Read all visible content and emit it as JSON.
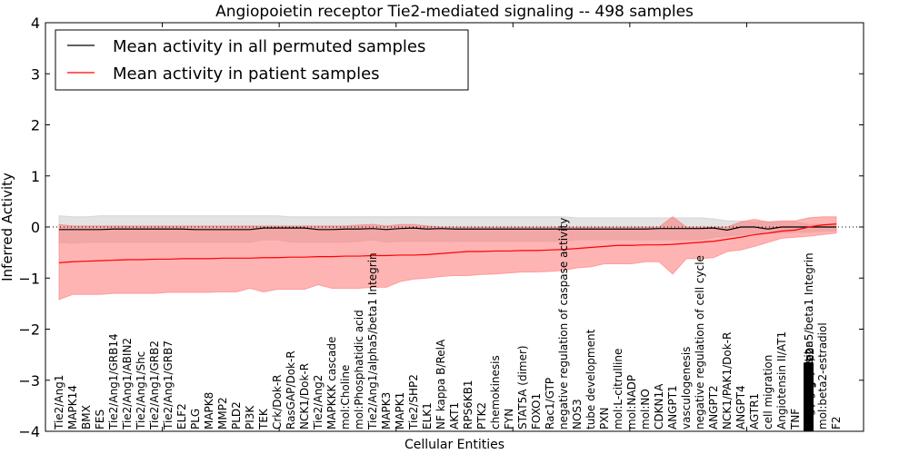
{
  "chart_data": {
    "type": "line",
    "title": "Angiopoietin receptor Tie2-mediated signaling -- 498 samples",
    "xlabel": "Cellular Entities",
    "ylabel": "Inferred Activity",
    "ylim": [
      -4,
      4
    ],
    "yticks": [
      -4,
      -3,
      -2,
      -1,
      0,
      1,
      2,
      3,
      4
    ],
    "ytick_labels": [
      "−4",
      "−3",
      "−2",
      "−1",
      "0",
      "1",
      "2",
      "3",
      "4"
    ],
    "xlim": [
      0,
      60
    ],
    "grid": false,
    "legend_position": "top-left",
    "reference_line": 0,
    "categories": [
      "Tie2/Ang1",
      "MAPK14",
      "BMX",
      "FES",
      "Tie2/Ang1/GRB14",
      "Tie2/Ang1/ABIN2",
      "Tie2/Ang1/Shc",
      "Tie2/Ang1/GRB2",
      "Tie2/Ang1/GRB7",
      "ELF2",
      "PLG",
      "MAPK8",
      "MMP2",
      "PLD2",
      "PI3K",
      "TEK",
      "Crk/Dok-R",
      "RasGAP/Dok-R",
      "NCK1/Dok-R",
      "Tie2/Ang2",
      "MAPKKK cascade",
      "mol:Choline",
      "mol:Phosphatidic acid",
      "Tie2/Ang1/alpha5/beta1 Integrin",
      "MAPK3",
      "MAPK1",
      "Tie2/SHP2",
      "ELK1",
      "NF kappa B/RelA",
      "AKT1",
      "RPS6KB1",
      "PTK2",
      "chemokinesis",
      "FYN",
      "STAT5A (dimer)",
      "FOXO1",
      "Rac1/GTP",
      "negative regulation of caspase activity",
      "NOS3",
      "tube development",
      "PXN",
      "mol:L-citrulline",
      "mol:NADP",
      "mol:NO",
      "CDKN1A",
      "ANGPT1",
      "vasculogenesis",
      "negative regulation of cell cycle",
      "ANGPT2",
      "NCK1/PAK1/Dok-R",
      "ANGPT4",
      "AGTR1",
      "cell migration",
      "Angiotensin II/AT1",
      "TNF",
      "(overlapping labels)",
      "mol:beta2-estradiol",
      "F2"
    ],
    "series": [
      {
        "name": "Mean activity in all permuted samples",
        "color": "#000000",
        "values": [
          -0.05,
          -0.05,
          -0.05,
          -0.05,
          -0.04,
          -0.04,
          -0.04,
          -0.04,
          -0.04,
          -0.04,
          -0.05,
          -0.05,
          -0.05,
          -0.05,
          -0.05,
          -0.02,
          -0.02,
          -0.02,
          -0.02,
          -0.05,
          -0.05,
          -0.04,
          -0.04,
          -0.03,
          -0.05,
          -0.03,
          -0.02,
          -0.04,
          -0.03,
          -0.04,
          -0.04,
          -0.04,
          -0.04,
          -0.04,
          -0.04,
          -0.04,
          -0.04,
          -0.04,
          -0.04,
          -0.04,
          -0.04,
          -0.04,
          -0.04,
          -0.04,
          -0.03,
          -0.03,
          -0.03,
          -0.03,
          -0.02,
          -0.06,
          0.0,
          0.0,
          -0.04,
          0.0,
          0.0,
          0.0,
          0.0,
          0.0
        ],
        "band_upper": [
          0.22,
          0.2,
          0.2,
          0.22,
          0.22,
          0.22,
          0.22,
          0.22,
          0.22,
          0.22,
          0.22,
          0.22,
          0.22,
          0.22,
          0.22,
          0.22,
          0.22,
          0.2,
          0.2,
          0.2,
          0.2,
          0.2,
          0.2,
          0.2,
          0.2,
          0.2,
          0.2,
          0.2,
          0.2,
          0.2,
          0.2,
          0.2,
          0.2,
          0.2,
          0.2,
          0.2,
          0.2,
          0.2,
          0.18,
          0.18,
          0.18,
          0.18,
          0.18,
          0.18,
          0.18,
          0.18,
          0.18,
          0.18,
          0.16,
          0.12,
          0.12,
          0.1,
          0.1,
          0.1,
          0.1,
          0.05,
          0.05,
          0.05
        ],
        "band_lower": [
          -0.3,
          -0.32,
          -0.3,
          -0.3,
          -0.3,
          -0.3,
          -0.3,
          -0.3,
          -0.3,
          -0.3,
          -0.3,
          -0.3,
          -0.3,
          -0.3,
          -0.3,
          -0.25,
          -0.25,
          -0.3,
          -0.3,
          -0.3,
          -0.3,
          -0.3,
          -0.28,
          -0.25,
          -0.3,
          -0.28,
          -0.28,
          -0.28,
          -0.28,
          -0.28,
          -0.28,
          -0.28,
          -0.28,
          -0.28,
          -0.28,
          -0.28,
          -0.28,
          -0.28,
          -0.25,
          -0.25,
          -0.25,
          -0.25,
          -0.25,
          -0.25,
          -0.25,
          -0.25,
          -0.25,
          -0.25,
          -0.2,
          -0.18,
          -0.15,
          -0.12,
          -0.12,
          -0.12,
          -0.1,
          -0.1,
          -0.08,
          -0.08
        ]
      },
      {
        "name": "Mean activity in patient samples",
        "color": "#ff0000",
        "values": [
          -0.7,
          -0.68,
          -0.67,
          -0.66,
          -0.65,
          -0.64,
          -0.64,
          -0.63,
          -0.63,
          -0.62,
          -0.62,
          -0.62,
          -0.61,
          -0.61,
          -0.61,
          -0.6,
          -0.6,
          -0.59,
          -0.59,
          -0.58,
          -0.58,
          -0.57,
          -0.57,
          -0.56,
          -0.56,
          -0.55,
          -0.55,
          -0.54,
          -0.52,
          -0.5,
          -0.48,
          -0.48,
          -0.47,
          -0.47,
          -0.46,
          -0.46,
          -0.45,
          -0.44,
          -0.42,
          -0.4,
          -0.38,
          -0.36,
          -0.36,
          -0.35,
          -0.35,
          -0.34,
          -0.32,
          -0.3,
          -0.28,
          -0.24,
          -0.2,
          -0.15,
          -0.12,
          -0.08,
          -0.06,
          0.0,
          0.04,
          0.06
        ],
        "band_upper": [
          0.05,
          0.02,
          0.02,
          0.02,
          0.02,
          0.02,
          0.02,
          0.02,
          0.02,
          0.02,
          0.02,
          0.02,
          0.02,
          0.02,
          0.02,
          0.02,
          0.02,
          0.02,
          0.02,
          0.02,
          0.02,
          0.02,
          0.04,
          0.05,
          0.02,
          0.05,
          0.05,
          0.02,
          0.0,
          0.0,
          0.0,
          0.0,
          0.0,
          0.0,
          0.0,
          0.0,
          0.0,
          0.0,
          0.0,
          0.0,
          0.0,
          0.0,
          0.0,
          0.0,
          0.0,
          0.2,
          0.0,
          0.0,
          0.0,
          0.0,
          0.1,
          0.15,
          0.1,
          0.12,
          0.12,
          0.18,
          0.2,
          0.2
        ],
        "band_lower": [
          -1.42,
          -1.32,
          -1.32,
          -1.32,
          -1.3,
          -1.3,
          -1.3,
          -1.3,
          -1.28,
          -1.28,
          -1.28,
          -1.28,
          -1.27,
          -1.27,
          -1.2,
          -1.27,
          -1.22,
          -1.22,
          -1.22,
          -1.13,
          -1.2,
          -1.2,
          -1.2,
          -1.18,
          -1.18,
          -1.07,
          -1.02,
          -1.0,
          -0.97,
          -0.95,
          -0.95,
          -0.93,
          -0.92,
          -0.9,
          -0.88,
          -0.88,
          -0.87,
          -0.85,
          -0.8,
          -0.78,
          -0.72,
          -0.72,
          -0.72,
          -0.68,
          -0.68,
          -0.92,
          -0.62,
          -0.62,
          -0.6,
          -0.48,
          -0.45,
          -0.38,
          -0.3,
          -0.22,
          -0.2,
          -0.18,
          -0.15,
          -0.12
        ]
      }
    ]
  }
}
